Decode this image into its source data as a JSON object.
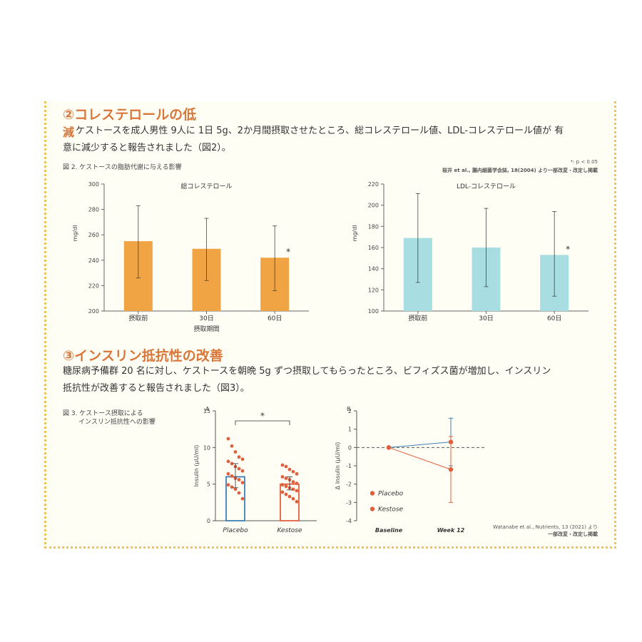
{
  "section2": {
    "heading_line1": "②コレステロールの低",
    "heading_line2": "減",
    "text_line1": "ケストースを成人男性 9人に 1日 5g、2か月間摂取させたところ、総コレステロール値、LDL-コレステロール値が 有",
    "text_line2": "意に減少すると報告されました（図2）。",
    "figure_caption": "図 2. ケストースの脂肪代謝に与える影響",
    "significance_note": "*: p < 0.05",
    "source": "桜井 et al., 腸内細菌学会誌, 18(2004) より一部改変・改定し掲載"
  },
  "section3": {
    "heading": "③インスリン抵抗性の改善",
    "text_line1": "糖尿病予備群 20 名に対し、ケストースを朝晩 5g ずつ摂取してもらったところ、ビフィズス菌が増加し、インスリン",
    "text_line2": "抵抗性が改善すると報告されました（図3）。",
    "figure_caption_line1": "図 3. ケストース摂取による",
    "figure_caption_line2": "インスリン抵抗性への影響",
    "source_line1": "Watanabe et al., Nutrients, 13 (2021) より",
    "source_line2": "一部改変・改定し掲載"
  },
  "colors": {
    "orange": "#f0a444",
    "lightblue": "#a8dde2",
    "placebo_blue": "#3f7fb3",
    "kestose_red": "#e0603e",
    "heading": "#d9773a"
  },
  "chart_data": [
    {
      "type": "bar",
      "title": "総コレステロール",
      "ylabel": "mg/dl",
      "xlabel": "摂取期間",
      "categories": [
        "摂取前",
        "30日",
        "60日"
      ],
      "values": [
        255,
        249,
        242
      ],
      "error_low": [
        226,
        224,
        216
      ],
      "error_high": [
        283,
        273,
        267
      ],
      "significance": [
        "",
        "",
        "*"
      ],
      "ylim": [
        200,
        300
      ],
      "yticks": [
        200,
        220,
        240,
        260,
        280,
        300
      ],
      "color": "#f0a444"
    },
    {
      "type": "bar",
      "title": "LDL-コレステロール",
      "ylabel": "mg/dl",
      "xlabel": "",
      "categories": [
        "摂取前",
        "30日",
        "60日"
      ],
      "values": [
        169,
        160,
        153
      ],
      "error_low": [
        127,
        123,
        114
      ],
      "error_high": [
        211,
        197,
        194
      ],
      "significance": [
        "",
        "",
        "*"
      ],
      "ylim": [
        100,
        220
      ],
      "yticks": [
        100,
        120,
        140,
        160,
        180,
        200,
        220
      ],
      "color": "#a8dde2"
    },
    {
      "type": "bar",
      "panel_label": "A",
      "ylabel": "Insulin (μU/ml)",
      "categories": [
        "Placebo",
        "Kestose"
      ],
      "values": [
        6.0,
        5.0
      ],
      "error_low": [
        4.5,
        4.2
      ],
      "error_high": [
        7.8,
        6.0
      ],
      "significance_bracket": "*",
      "ylim": [
        0,
        15
      ],
      "yticks": [
        0,
        5,
        10,
        15
      ],
      "points": [
        [
          11.2,
          10.2,
          9.4,
          8.7,
          8.4,
          8.1,
          7.8,
          7.4,
          7.1,
          6.8,
          6.4,
          6.1,
          5.8,
          5.6,
          5.2,
          4.9,
          4.6,
          4.3,
          3.8,
          3.0
        ],
        [
          7.6,
          7.4,
          7.0,
          6.7,
          6.4,
          6.0,
          5.8,
          5.6,
          5.3,
          5.1,
          4.9,
          4.7,
          4.5,
          4.3,
          4.1,
          3.9,
          3.6,
          3.3,
          3.0,
          2.6
        ]
      ],
      "colors": [
        "#3f7fb3",
        "#e0603e"
      ]
    },
    {
      "type": "line",
      "panel_label": "B",
      "ylabel": "Δ Insulin (μU/ml)",
      "categories": [
        "Baseline",
        "Week 12"
      ],
      "ylim": [
        -4,
        2
      ],
      "yticks": [
        -4,
        -3,
        -2,
        -1,
        0,
        1,
        2
      ],
      "series": [
        {
          "name": "Placebo",
          "values": [
            0,
            0.3
          ],
          "error_low": [
            0,
            -1.0
          ],
          "error_high": [
            0,
            1.6
          ],
          "color": "#3f7fb3"
        },
        {
          "name": "Kestose",
          "values": [
            0,
            -1.2
          ],
          "error_low": [
            0,
            -3.0
          ],
          "error_high": [
            0,
            0.6
          ],
          "color": "#e0603e"
        }
      ],
      "reference_line": 0
    }
  ]
}
